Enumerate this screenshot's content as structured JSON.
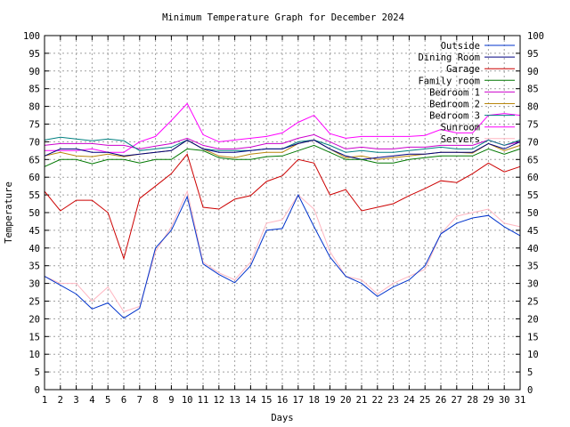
{
  "chart_data": {
    "type": "line",
    "title": "Minimum Temperature Graph for December 2024",
    "xlabel": "Days",
    "ylabel": "Temperature",
    "x": [
      1,
      2,
      3,
      4,
      5,
      6,
      7,
      8,
      9,
      10,
      11,
      12,
      13,
      14,
      15,
      16,
      17,
      18,
      19,
      20,
      21,
      22,
      23,
      24,
      25,
      26,
      27,
      28,
      29,
      30,
      31
    ],
    "xlim": [
      1,
      31
    ],
    "ylim": [
      0,
      100
    ],
    "yticks": [
      0,
      5,
      10,
      15,
      20,
      25,
      30,
      35,
      40,
      45,
      50,
      55,
      60,
      65,
      70,
      75,
      80,
      85,
      90,
      95,
      100
    ],
    "grid": true,
    "legend_position": "top-right",
    "series": [
      {
        "name": "Outside",
        "color": "#0033cc",
        "values": [
          32,
          29.5,
          27,
          22.8,
          24.5,
          20.2,
          23,
          40,
          45,
          54.5,
          35.5,
          32.5,
          30.2,
          35,
          45,
          45.5,
          55,
          46,
          37.5,
          32,
          30,
          26.3,
          29,
          31,
          35,
          44,
          47,
          48.5,
          49.2,
          46,
          43.5
        ]
      },
      {
        "name": "Dining Room",
        "color": "#000080",
        "values": [
          66,
          68,
          68,
          67,
          67,
          66,
          66.5,
          67,
          67.5,
          70.5,
          68,
          67,
          67,
          67.5,
          68,
          68,
          69.5,
          70.5,
          68,
          66,
          65,
          65.5,
          66,
          66.5,
          66.5,
          67,
          67,
          67,
          69.5,
          68,
          70
        ]
      },
      {
        "name": "Garage",
        "color": "#cc0000",
        "values": [
          56,
          50.5,
          53.5,
          53.5,
          50,
          37,
          54,
          57.5,
          61,
          66.5,
          51.5,
          51,
          53.8,
          54.8,
          58.8,
          60.4,
          65,
          64,
          55,
          56.5,
          50.5,
          51.5,
          52.5,
          54.8,
          56.8,
          59,
          58.5,
          61,
          64,
          61.5,
          63
        ]
      },
      {
        "name": "Family room",
        "color": "#007700",
        "values": [
          63,
          65,
          65,
          63.8,
          65,
          65,
          64,
          65,
          65,
          68,
          67.5,
          65.5,
          65,
          65,
          65.8,
          66,
          67.5,
          69,
          67,
          65,
          65,
          64,
          64,
          65,
          65.5,
          66,
          66,
          66,
          68,
          66.5,
          68
        ]
      },
      {
        "name": "Bedroom 1",
        "color": "#cc00cc",
        "values": [
          69,
          69.5,
          69.5,
          69.5,
          69,
          69,
          68,
          68.8,
          69.5,
          71,
          69,
          68,
          68,
          68.5,
          69.5,
          69.5,
          71,
          72,
          70,
          68,
          68.5,
          68,
          68,
          68.5,
          68.5,
          69,
          69,
          69,
          70.5,
          69,
          70
        ]
      },
      {
        "name": "Bedroom 2",
        "color": "#b8860b",
        "values": [
          66,
          67,
          66,
          65.8,
          66.5,
          65.8,
          66.5,
          67,
          67.5,
          70.5,
          68,
          66,
          65.5,
          66.5,
          67,
          67,
          69.5,
          70.5,
          68,
          65.5,
          66,
          65,
          65.5,
          66,
          66.5,
          67,
          67,
          66.8,
          69.5,
          67.5,
          69
        ]
      },
      {
        "name": "Bedroom 3",
        "color": "#008080",
        "values": [
          70.5,
          71.3,
          70.8,
          70.3,
          70.8,
          70.3,
          67.5,
          68,
          68.5,
          70.5,
          68,
          67.5,
          67.5,
          67.5,
          68,
          68,
          70,
          70.5,
          69,
          67,
          67.5,
          67,
          67,
          67.5,
          68,
          68.5,
          68,
          68,
          70.5,
          69,
          70.5
        ]
      },
      {
        "name": "Sunroom",
        "color": "#ff00ff",
        "values": [
          67.5,
          67.5,
          67.5,
          68,
          67,
          67,
          70,
          71.5,
          76,
          80.8,
          72,
          70,
          70.5,
          71,
          71.5,
          72.5,
          75.5,
          77.5,
          72.3,
          71,
          71.5,
          71.5,
          71.5,
          71.5,
          71.8,
          73.5,
          72.5,
          72.5,
          77.5,
          78,
          77.5
        ]
      },
      {
        "name": "Servers",
        "color": "#ffb6c1",
        "values": [
          32,
          30,
          30,
          25,
          29,
          22,
          23.5,
          39,
          46,
          56,
          36,
          33,
          31,
          36,
          47,
          48,
          55,
          51,
          39,
          32,
          31,
          27,
          30,
          32,
          34,
          44,
          49,
          50,
          51,
          47,
          46
        ]
      }
    ]
  }
}
